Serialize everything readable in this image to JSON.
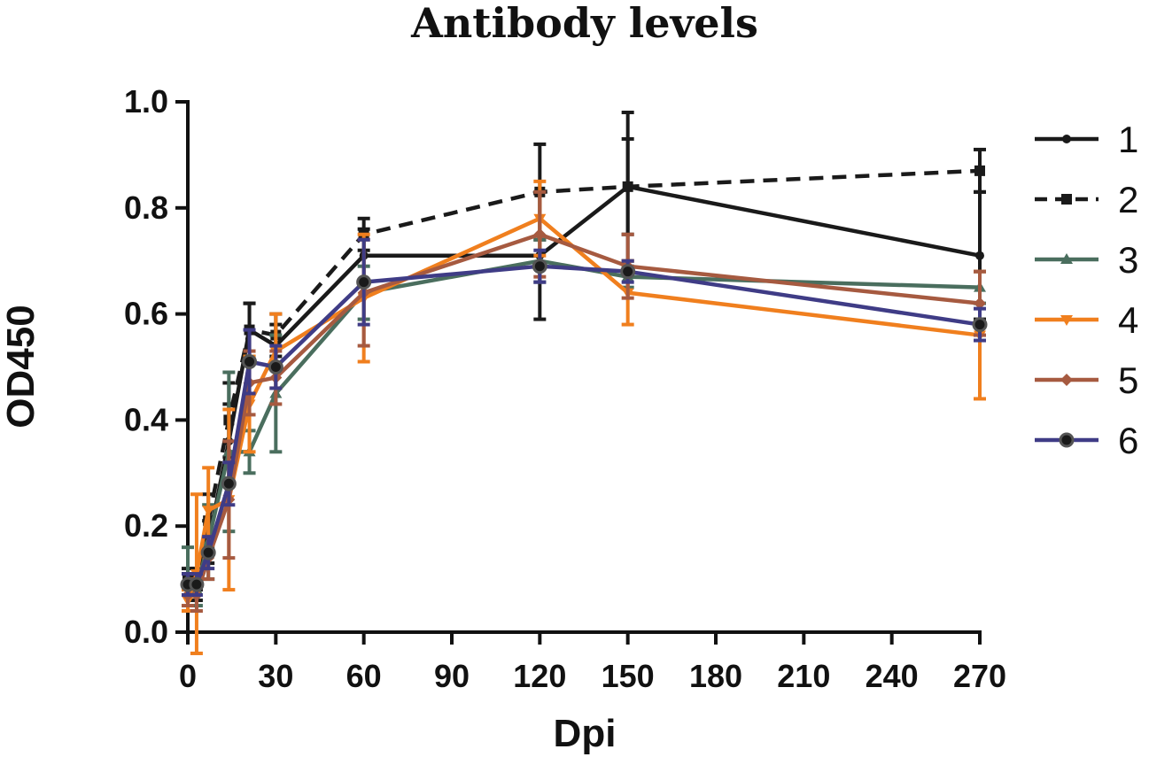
{
  "chart_data": {
    "type": "line",
    "title": "Antibody levels",
    "xlabel": "Dpi",
    "ylabel": "OD450",
    "x_ticks": [
      0,
      30,
      60,
      90,
      120,
      150,
      180,
      210,
      240,
      270
    ],
    "x_tick_labels": [
      "0",
      "30",
      "60",
      "90",
      "120",
      "150",
      "180",
      "210",
      "240",
      "270"
    ],
    "y_ticks": [
      0.0,
      0.2,
      0.4,
      0.6,
      0.8,
      1.0
    ],
    "y_tick_labels": [
      "0.0",
      "0.2",
      "0.4",
      "0.6",
      "0.8",
      "1.0"
    ],
    "xlim": [
      0,
      270
    ],
    "ylim": [
      0,
      1.0
    ],
    "legend_position": "right",
    "series": [
      {
        "name": "1",
        "color": "#1a1a1a",
        "dash": "solid",
        "marker": "circle-small",
        "x": [
          0,
          3,
          7,
          14,
          21,
          30,
          60,
          120,
          150,
          270
        ],
        "y": [
          0.09,
          0.08,
          0.17,
          0.36,
          0.57,
          0.54,
          0.71,
          0.71,
          0.84,
          0.71
        ],
        "err": [
          0.02,
          0.02,
          0.04,
          0.07,
          0.05,
          0.04,
          0.05,
          0.12,
          0.14,
          0.12
        ]
      },
      {
        "name": "2",
        "color": "#1a1a1a",
        "dash": "dashed",
        "marker": "square",
        "x": [
          0,
          3,
          7,
          14,
          21,
          30,
          60,
          120,
          150,
          270
        ],
        "y": [
          0.1,
          0.1,
          0.21,
          0.4,
          0.57,
          0.56,
          0.75,
          0.83,
          0.84,
          0.87
        ],
        "err": [
          0.02,
          0.02,
          0.05,
          0.07,
          0.05,
          0.04,
          0.03,
          0.09,
          0.09,
          0.04
        ]
      },
      {
        "name": "3",
        "color": "#4a6e5e",
        "dash": "solid",
        "marker": "triangle-up",
        "x": [
          0,
          3,
          7,
          14,
          21,
          30,
          60,
          120,
          150,
          270
        ],
        "y": [
          0.1,
          0.08,
          0.17,
          0.34,
          0.34,
          0.45,
          0.64,
          0.7,
          0.67,
          0.65
        ],
        "err": [
          0.06,
          0.03,
          0.07,
          0.15,
          0.04,
          0.11,
          0.05,
          0.04,
          0.02,
          0.03
        ]
      },
      {
        "name": "4",
        "color": "#f07f1e",
        "dash": "solid",
        "marker": "triangle-down",
        "x": [
          0,
          3,
          7,
          14,
          21,
          30,
          60,
          120,
          150,
          270
        ],
        "y": [
          0.06,
          0.11,
          0.23,
          0.25,
          0.43,
          0.53,
          0.63,
          0.78,
          0.64,
          0.56
        ],
        "err": [
          0.02,
          0.15,
          0.08,
          0.17,
          0.09,
          0.07,
          0.12,
          0.07,
          0.06,
          0.12
        ]
      },
      {
        "name": "5",
        "color": "#a65a40",
        "dash": "solid",
        "marker": "diamond",
        "x": [
          0,
          3,
          7,
          14,
          21,
          30,
          60,
          120,
          150,
          270
        ],
        "y": [
          0.07,
          0.07,
          0.14,
          0.25,
          0.47,
          0.48,
          0.64,
          0.75,
          0.69,
          0.62
        ],
        "err": [
          0.02,
          0.03,
          0.04,
          0.11,
          0.06,
          0.05,
          0.1,
          0.08,
          0.06,
          0.06
        ]
      },
      {
        "name": "6",
        "color": "#3f3c86",
        "dash": "solid",
        "marker": "circle-open",
        "x": [
          0,
          3,
          7,
          14,
          21,
          30,
          60,
          120,
          150,
          270
        ],
        "y": [
          0.09,
          0.09,
          0.15,
          0.28,
          0.51,
          0.5,
          0.66,
          0.69,
          0.68,
          0.58
        ],
        "err": [
          0.02,
          0.02,
          0.03,
          0.04,
          0.06,
          0.04,
          0.08,
          0.03,
          0.02,
          0.03
        ]
      }
    ]
  }
}
